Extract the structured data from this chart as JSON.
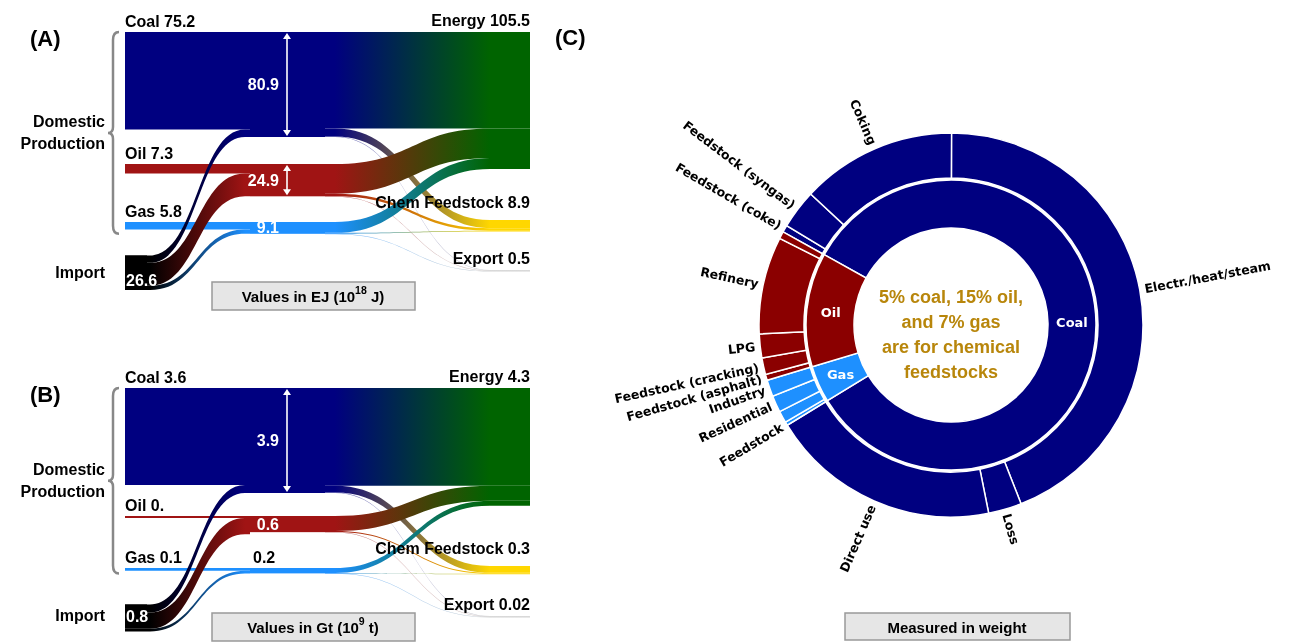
{
  "chart_data": [
    {
      "type": "other",
      "title": "(A)",
      "value_labels": [
        "75.2",
        "7.3",
        "5.8",
        "26.6",
        "105.5",
        "8.9",
        "0.5"
      ],
      "categories": [
        "Coal",
        "Oil",
        "Gas",
        "Import",
        "Energy",
        "Chem Feedstock",
        "Export"
      ],
      "values": [
        75.2,
        7.3,
        5.8,
        26.6,
        105.5,
        8.9,
        0.5
      ],
      "totals": [
        "80.9",
        "24.9",
        "9.1"
      ],
      "colors": [
        "#000080",
        "#a01414",
        "#1e90ff",
        "#000000",
        "#006400",
        "#ffd700",
        "#b4b4b4"
      ],
      "annotations": [
        "Domestic Production",
        "Values in EJ (10$^{18}$ J)"
      ]
    },
    {
      "type": "other",
      "title": "(B)",
      "categories": [
        "Coal",
        "Oil",
        "Gas",
        "Import",
        "Energy",
        "Chem Feedstock",
        "Export"
      ],
      "values": [
        3.6,
        null,
        0.1,
        0.8,
        4.3,
        0.3,
        0.02
      ],
      "value_labels": [
        "3.6",
        "0.",
        "0.1",
        "0.8",
        "4.3",
        "0.3",
        "0.02"
      ],
      "totals": [
        "3.9",
        "0.6",
        "0.2"
      ],
      "colors": [
        "#000080",
        "#a01414",
        "#1e90ff",
        "#000000",
        "#006400",
        "#ffd700",
        "#b4b4b4"
      ],
      "annotations": [
        "Domestic Production",
        "Values in Gt (10$^{9}$ t)"
      ]
    },
    {
      "type": "donut",
      "title": "(C)",
      "categories": [
        "Coal",
        "Gas",
        "Oil"
      ],
      "values": [
        83.2,
        4.1,
        12.7
      ],
      "colors": [
        "#000080",
        "#1e90ff",
        "#8b0000"
      ],
      "annotations": [
        "5% coal, 15% oil,\nand 7% gas\nare for chemical\nfeedstocks",
        "Measured in weight"
      ]
    },
    {
      "type": "donut",
      "categories": [
        "Feedstock (coke)",
        "Feedstock (syngas)",
        "Coking",
        "Electr./heat/steam",
        "Loss",
        "Direct use",
        "Feedstock",
        null,
        "Residential",
        "Industry",
        "Feedstock (asphalt)",
        "Feedstock (cracking)",
        "LPG",
        "Refinery",
        null
      ],
      "values": [
        0.6,
        3.3,
        13.1,
        44.0,
        2.8,
        19.4,
        0.3,
        1.0,
        1.4,
        1.4,
        0.5,
        1.4,
        2.0,
        8.2,
        0.6
      ],
      "colors": [
        "#000080",
        "#000080",
        "#000080",
        "#000080",
        "#000080",
        "#000080",
        "#1e90ff",
        "#1e90ff",
        "#1e90ff",
        "#1e90ff",
        "#8b0000",
        "#8b0000",
        "#8b0000",
        "#8b0000",
        "#8b0000"
      ]
    }
  ]
}
